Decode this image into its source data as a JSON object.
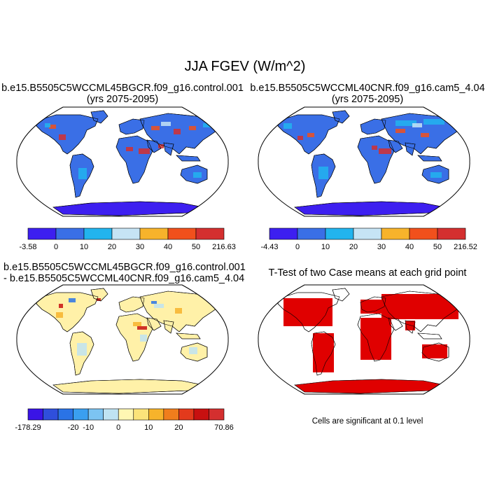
{
  "figure": {
    "title": "JJA FGEV (W/m^2)"
  },
  "panels": [
    {
      "id": "control",
      "title_lines": [
        "b.e15.B5505C5WCCML45BGCR.f09_g16.control.001",
        "(yrs 2075-2095)"
      ],
      "colorbar": {
        "colors": [
          "#3d1ff0",
          "#3a6fe6",
          "#22b4ee",
          "#c6e4f5",
          "#f7b32b",
          "#f1501c",
          "#d42f2f"
        ],
        "labels": [
          "-3.58",
          "0",
          "10",
          "20",
          "30",
          "40",
          "50",
          "216.63"
        ]
      }
    },
    {
      "id": "cam5",
      "title_lines": [
        "b.e15.B5505C5WCCML40CNR.f09_g16.cam5_4.04",
        "(yrs 2075-2095)"
      ],
      "colorbar": {
        "colors": [
          "#3d1ff0",
          "#3a6fe6",
          "#22b4ee",
          "#c6e4f5",
          "#f7b32b",
          "#f1501c",
          "#d42f2f"
        ],
        "labels": [
          "-4.43",
          "0",
          "10",
          "20",
          "30",
          "40",
          "50",
          "216.52"
        ]
      }
    },
    {
      "id": "difference",
      "title_lines": [
        "b.e15.B5505C5WCCML45BGCR.f09_g16.control.001",
        "- b.e15.B5505C5WCCML40CNR.f09_g16.cam5_4.04"
      ],
      "colorbar": {
        "colors": [
          "#3a14e6",
          "#2f4fdc",
          "#2a73e6",
          "#3a9ff0",
          "#7cc4f2",
          "#bfe3f2",
          "#fff7b3",
          "#fbe37a",
          "#f7b32b",
          "#f07d1c",
          "#e33a1c",
          "#c81010",
          "#d42f2f"
        ],
        "labels": [
          "-178.29",
          "-20",
          "-10",
          "0",
          "10",
          "20",
          "70.86"
        ]
      }
    },
    {
      "id": "ttest",
      "title_lines": [
        "T-Test of two Case means at each grid point"
      ],
      "note": "Cells are significant at 0.1 level"
    }
  ]
}
